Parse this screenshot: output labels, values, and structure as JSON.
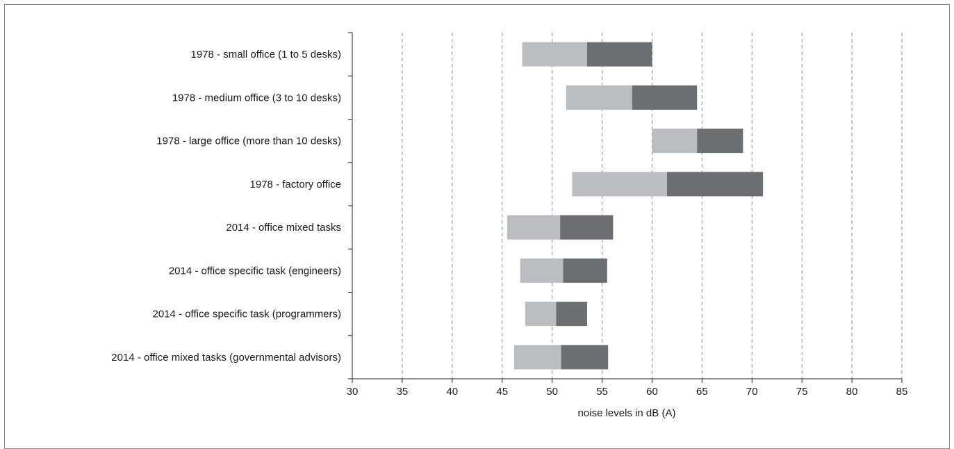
{
  "chart_data": {
    "type": "bar",
    "orientation": "horizontal",
    "stacked": true,
    "categories": [
      "1978 - small office (1 to 5 desks)",
      "1978 - medium office (3 to 10 desks)",
      "1978 - large office (more than 10 desks)",
      "1978 - factory office",
      "2014 - office mixed tasks",
      "2014 - office specific task (engineers)",
      "2014 - office specific task (programmers)",
      "2014 - office mixed tasks (governmental advisors)"
    ],
    "segments": [
      {
        "color": "#bcbdc0",
        "start": [
          47.0,
          51.4,
          60.0,
          52.0,
          45.5,
          46.8,
          47.3,
          46.2
        ],
        "end": [
          53.5,
          58.0,
          64.5,
          61.5,
          50.8,
          51.1,
          50.4,
          50.9
        ]
      },
      {
        "color": "#6d6e71",
        "start": [
          53.5,
          58.0,
          64.5,
          61.5,
          50.8,
          51.1,
          50.4,
          50.9
        ],
        "end": [
          60.0,
          64.5,
          69.1,
          71.1,
          56.1,
          55.5,
          53.5,
          55.6
        ]
      }
    ],
    "xlabel": "noise levels in dB (A)",
    "xlim": [
      30,
      85
    ],
    "xticks": [
      30,
      35,
      40,
      45,
      50,
      55,
      60,
      65,
      70,
      75,
      80,
      85
    ],
    "grid": "vertical dashed",
    "legend": "none"
  }
}
